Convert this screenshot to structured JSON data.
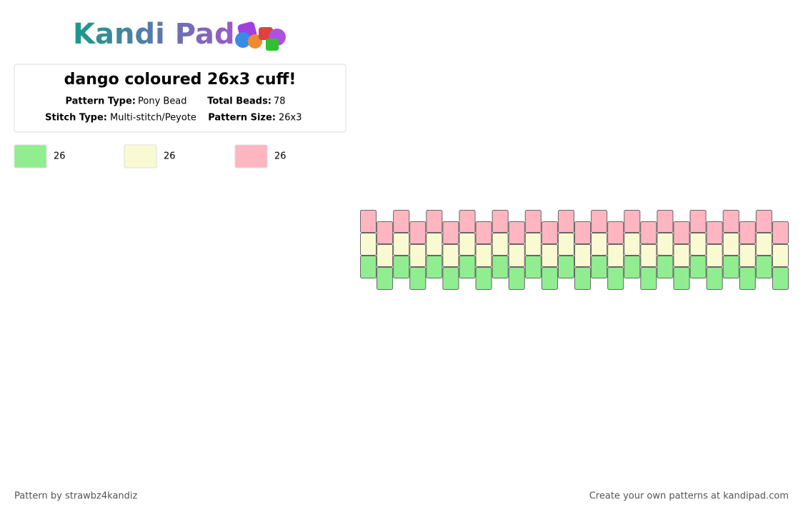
{
  "header": {
    "logo": "Kandi Pad",
    "title": "dango coloured 26x3 cuff!",
    "details": [
      {
        "label": "Pattern Type:",
        "value": "Pony Bead"
      },
      {
        "label": "Total Beads:",
        "value": "78"
      },
      {
        "label": "Stitch Type:",
        "value": "Multi-stitch/Peyote"
      },
      {
        "label": "Pattern Size:",
        "value": "26x3"
      }
    ]
  },
  "palette": [
    {
      "color": "#90ee90",
      "count": "26"
    },
    {
      "color": "#fafad2",
      "count": "26"
    },
    {
      "color": "#ffb6c1",
      "count": "26"
    }
  ],
  "pattern": {
    "columns": 26,
    "rows_top_to_bottom": [
      2,
      1,
      0
    ]
  },
  "footer": {
    "left": "Pattern by strawbz4kandiz",
    "right": "Create your own patterns at kandipad.com"
  }
}
